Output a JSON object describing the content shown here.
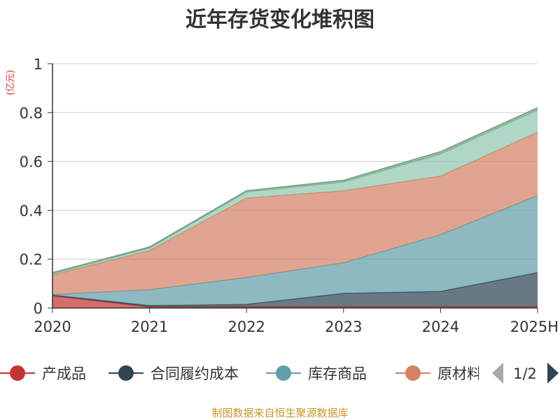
{
  "chart_data": {
    "type": "area",
    "stacked": true,
    "title": "近年存货变化堆积图",
    "ylabel": "(亿元)",
    "categories": [
      "2020",
      "2021",
      "2022",
      "2023",
      "2024",
      "2025H"
    ],
    "ylim": [
      0,
      1
    ],
    "yticks": [
      "0",
      "0.2",
      "0.4",
      "0.6",
      "0.8",
      "1"
    ],
    "grid": true,
    "series": [
      {
        "name": "产成品",
        "color": "#c23531",
        "values": [
          0.05,
          0.005,
          0.005,
          0.005,
          0.005,
          0.005
        ]
      },
      {
        "name": "合同履约成本",
        "color": "#2f4554",
        "values": [
          0.003,
          0.005,
          0.01,
          0.055,
          0.063,
          0.14
        ]
      },
      {
        "name": "库存商品",
        "color": "#61a0a8",
        "values": [
          0.002,
          0.065,
          0.11,
          0.125,
          0.232,
          0.315
        ]
      },
      {
        "name": "原材料",
        "color": "#d48265",
        "values": [
          0.08,
          0.16,
          0.325,
          0.295,
          0.24,
          0.26
        ]
      },
      {
        "name": "",
        "color": "#91c7ae",
        "values": [
          0.005,
          0.01,
          0.025,
          0.035,
          0.09,
          0.09
        ]
      },
      {
        "name": "",
        "color": "#749f83",
        "values": [
          0.005,
          0.005,
          0.005,
          0.008,
          0.01,
          0.01
        ]
      }
    ],
    "legend": {
      "placement": "bottom",
      "visible_items": [
        "产成品",
        "合同履约成本",
        "库存商品",
        "原材料"
      ],
      "page": "1/2"
    },
    "source": "制图数据来自恒生聚源数据库"
  }
}
